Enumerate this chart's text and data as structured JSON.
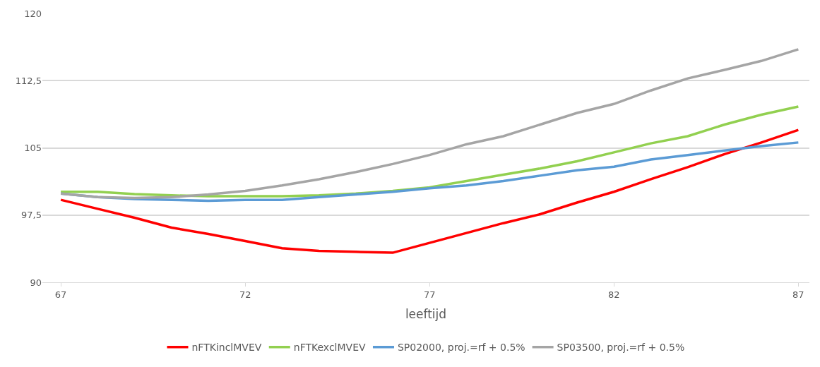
{
  "chart_data": {
    "type": "line",
    "xlabel": "leeftijd",
    "x": [
      67,
      68,
      69,
      70,
      71,
      72,
      73,
      74,
      75,
      76,
      77,
      78,
      79,
      80,
      81,
      82,
      83,
      84,
      85,
      86,
      87
    ],
    "series": [
      {
        "name": "nFTKinclMVEV",
        "color": "#ff0000",
        "values": [
          99.2,
          98.2,
          97.2,
          96.1,
          95.4,
          94.6,
          93.8,
          93.5,
          93.4,
          93.3,
          94.4,
          95.5,
          96.6,
          97.6,
          98.9,
          100.1,
          101.5,
          102.85,
          104.3,
          105.6,
          107.0
        ]
      },
      {
        "name": "nFTKexclMVEV",
        "color": "#92d050",
        "values": [
          100.1,
          100.1,
          99.85,
          99.7,
          99.6,
          99.6,
          99.6,
          99.7,
          99.9,
          100.2,
          100.6,
          101.3,
          102.0,
          102.7,
          103.5,
          104.5,
          105.5,
          106.3,
          107.6,
          108.7,
          109.6
        ]
      },
      {
        "name": "SP02000, proj.=rf + 0.5%",
        "color": "#5b9bd5",
        "values": [
          99.9,
          99.5,
          99.3,
          99.2,
          99.1,
          99.2,
          99.2,
          99.5,
          99.8,
          100.1,
          100.5,
          100.8,
          101.3,
          101.9,
          102.5,
          102.9,
          103.7,
          104.2,
          104.7,
          105.2,
          105.6
        ]
      },
      {
        "name": "SP03500, proj.=rf + 0.5%",
        "color": "#a5a5a5",
        "values": [
          99.9,
          99.5,
          99.4,
          99.5,
          99.8,
          100.2,
          100.8,
          101.5,
          102.3,
          103.2,
          104.2,
          105.4,
          106.3,
          107.6,
          108.9,
          109.9,
          111.4,
          112.75,
          113.7,
          114.7,
          116.0
        ]
      }
    ],
    "xlim": [
      66.5,
      87.3
    ],
    "xticks": [
      67,
      72,
      77,
      82,
      87
    ],
    "ylim": [
      90,
      120
    ],
    "yticks": [
      90,
      {
        "value": 97.5,
        "label": "97,5"
      },
      105,
      {
        "value": 112.5,
        "label": "112,5"
      },
      120
    ],
    "grid": "y",
    "legend": "bottom",
    "marker": "none",
    "line_style": "solid"
  }
}
